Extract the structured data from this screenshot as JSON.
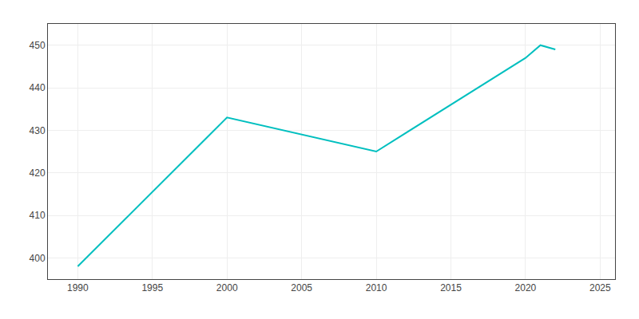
{
  "chart_data": {
    "type": "line",
    "x": [
      1990,
      2000,
      2010,
      2020,
      2021,
      2022
    ],
    "values": [
      398,
      433,
      425,
      447,
      450,
      449
    ],
    "color": "#00BFBF",
    "xlim": [
      1988,
      2026
    ],
    "ylim": [
      395,
      455
    ],
    "xticks": [
      1990,
      1995,
      2000,
      2005,
      2010,
      2015,
      2020,
      2025
    ],
    "yticks": [
      400,
      410,
      420,
      430,
      440,
      450
    ],
    "grid": true
  }
}
